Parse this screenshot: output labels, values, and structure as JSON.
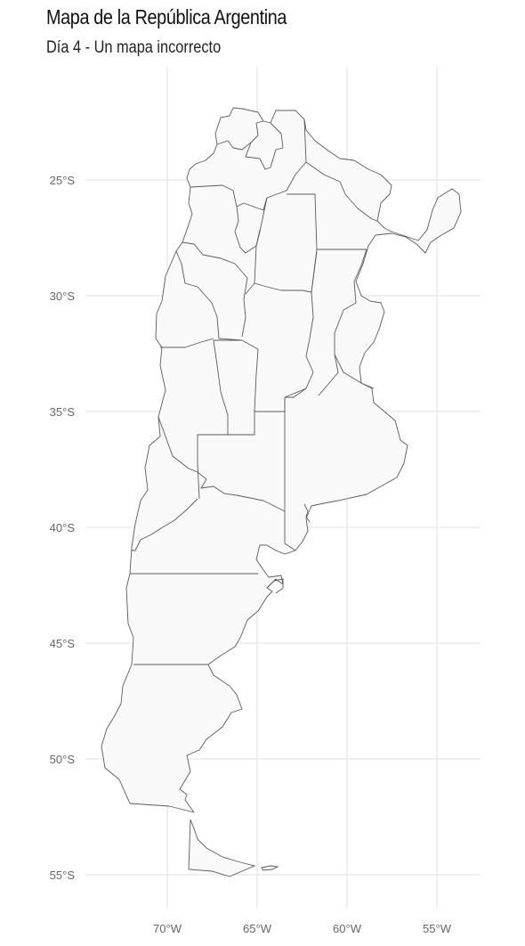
{
  "title": "Mapa de la República Argentina",
  "subtitle": "Día 4 - Un mapa incorrecto",
  "axes": {
    "y_ticks": [
      {
        "lat": -25,
        "label": "25°S"
      },
      {
        "lat": -30,
        "label": "30°S"
      },
      {
        "lat": -35,
        "label": "35°S"
      },
      {
        "lat": -40,
        "label": "40°S"
      },
      {
        "lat": -45,
        "label": "45°S"
      },
      {
        "lat": -50,
        "label": "50°S"
      },
      {
        "lat": -55,
        "label": "55°S"
      }
    ],
    "x_ticks": [
      {
        "lon": -70,
        "label": "70°W"
      },
      {
        "lon": -65,
        "label": "65°W"
      },
      {
        "lon": -60,
        "label": "60°W"
      },
      {
        "lon": -55,
        "label": "55°W"
      }
    ],
    "lon_range": [
      -73.9,
      -53.4
    ],
    "lat_range": [
      -56.6,
      -21.6
    ]
  },
  "colors": {
    "fill": "#f9f9f9",
    "stroke": "#5a5a5a",
    "grid": "#ebebeb",
    "text": "#666666"
  }
}
